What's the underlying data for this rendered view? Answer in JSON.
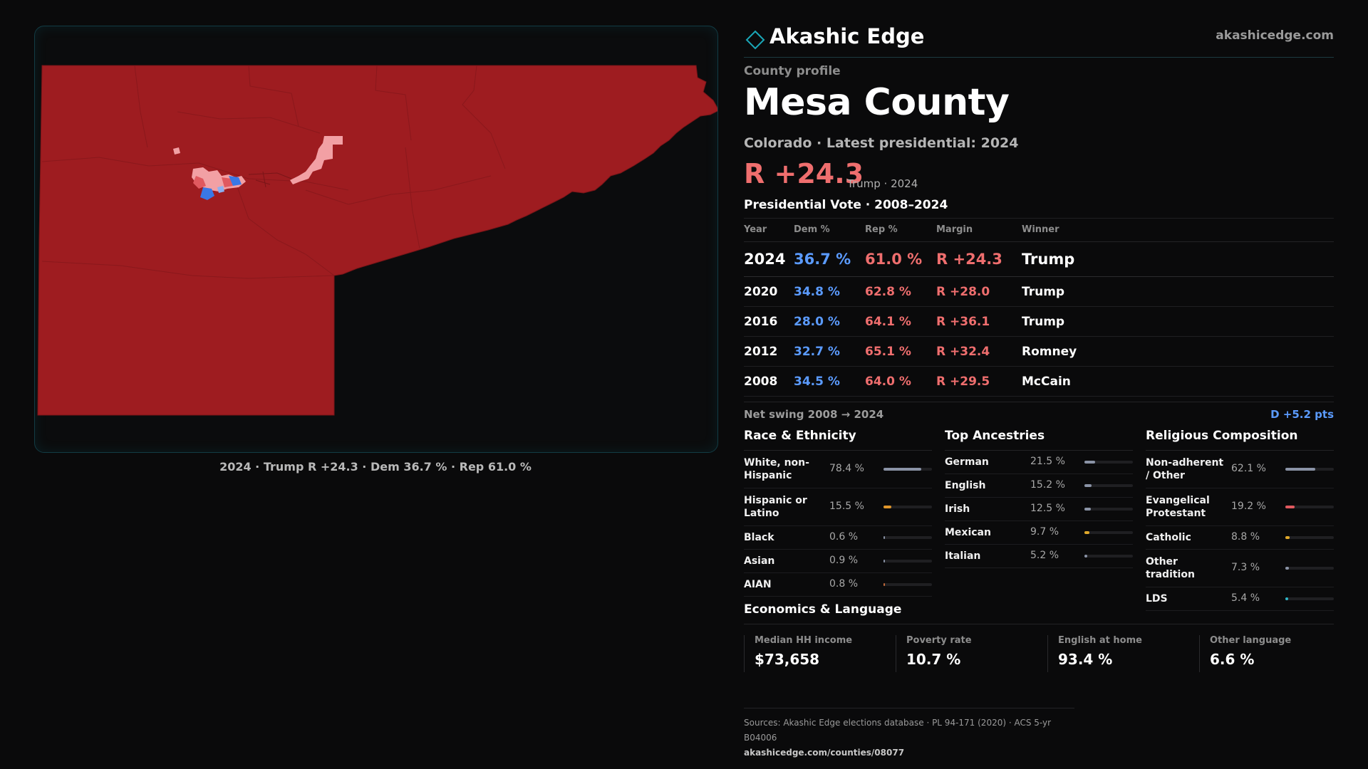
{
  "map": {
    "caption": "2024 · Trump R +24.3 · Dem 36.7 % · Rep 61.0 %",
    "colors": {
      "rep_strong": "#9e1c20",
      "rep_light": "#f2a0a4",
      "rep_mid": "#e0595f",
      "dem": "#3a78e6",
      "dem_light": "#8bb0f0"
    }
  },
  "header": {
    "brand_name": "Akashic Edge",
    "brand_url": "akashicedge.com",
    "brand_icon": "diamond-outline-icon",
    "kicker": "County profile",
    "title": "Mesa County",
    "subtitle": "Colorado · Latest presidential: 2024",
    "margin_value": "R +24.3",
    "margin_note": "Trump · 2024"
  },
  "vote": {
    "title": "Presidential Vote · 2008–2024",
    "columns": [
      "Year",
      "Dem %",
      "Rep %",
      "Margin",
      "Winner"
    ],
    "rows": [
      {
        "year": "2024",
        "dem": "36.7 %",
        "rep": "61.0 %",
        "margin": "R +24.3",
        "winner": "Trump"
      },
      {
        "year": "2020",
        "dem": "34.8 %",
        "rep": "62.8 %",
        "margin": "R +28.0",
        "winner": "Trump"
      },
      {
        "year": "2016",
        "dem": "28.0 %",
        "rep": "64.1 %",
        "margin": "R +36.1",
        "winner": "Trump"
      },
      {
        "year": "2012",
        "dem": "32.7 %",
        "rep": "65.1 %",
        "margin": "R +32.4",
        "winner": "Romney"
      },
      {
        "year": "2008",
        "dem": "34.5 %",
        "rep": "64.0 %",
        "margin": "R +29.5",
        "winner": "McCain"
      }
    ],
    "swing_label": "Net swing 2008 → 2024",
    "swing_value": "D +5.2 pts"
  },
  "race": {
    "title": "Race & Ethnicity",
    "items": [
      {
        "label": "White, non-Hispanic",
        "value": "78.4 %",
        "pct": 78.4,
        "color": "#8a93a6"
      },
      {
        "label": "Hispanic or Latino",
        "value": "15.5 %",
        "pct": 15.5,
        "color": "#e0962a"
      },
      {
        "label": "Black",
        "value": "0.6 %",
        "pct": 0.6,
        "color": "#8a93a6"
      },
      {
        "label": "Asian",
        "value": "0.9 %",
        "pct": 0.9,
        "color": "#8a93a6"
      },
      {
        "label": "AIAN",
        "value": "0.8 %",
        "pct": 0.8,
        "color": "#c46a3a"
      }
    ]
  },
  "ancestry": {
    "title": "Top Ancestries",
    "items": [
      {
        "label": "German",
        "value": "21.5 %",
        "pct": 21.5,
        "color": "#8a93a6"
      },
      {
        "label": "English",
        "value": "15.2 %",
        "pct": 15.2,
        "color": "#8a93a6"
      },
      {
        "label": "Irish",
        "value": "12.5 %",
        "pct": 12.5,
        "color": "#8a93a6"
      },
      {
        "label": "Mexican",
        "value": "9.7 %",
        "pct": 9.7,
        "color": "#e0a82a"
      },
      {
        "label": "Italian",
        "value": "5.2 %",
        "pct": 5.2,
        "color": "#8a93a6"
      }
    ]
  },
  "religion": {
    "title": "Religious Composition",
    "items": [
      {
        "label": "Non-adherent / Other",
        "value": "62.1 %",
        "pct": 62.1,
        "color": "#8a93a6"
      },
      {
        "label": "Evangelical Protestant",
        "value": "19.2 %",
        "pct": 19.2,
        "color": "#e0595f"
      },
      {
        "label": "Catholic",
        "value": "8.8 %",
        "pct": 8.8,
        "color": "#e0a82a"
      },
      {
        "label": "Other tradition",
        "value": "7.3 %",
        "pct": 7.3,
        "color": "#8a93a6"
      },
      {
        "label": "LDS",
        "value": "5.4 %",
        "pct": 5.4,
        "color": "#2fb7c9"
      }
    ]
  },
  "economics": {
    "title": "Economics & Language",
    "items": [
      {
        "label": "Median HH income",
        "value": "$73,658"
      },
      {
        "label": "Poverty rate",
        "value": "10.7 %"
      },
      {
        "label": "English at home",
        "value": "93.4 %"
      },
      {
        "label": "Other language",
        "value": "6.6 %"
      }
    ]
  },
  "sources": {
    "text": "Sources: Akashic Edge elections database · PL 94-171 (2020) · ACS 5-yr B04006",
    "link": "akashicedge.com/counties/08077"
  }
}
